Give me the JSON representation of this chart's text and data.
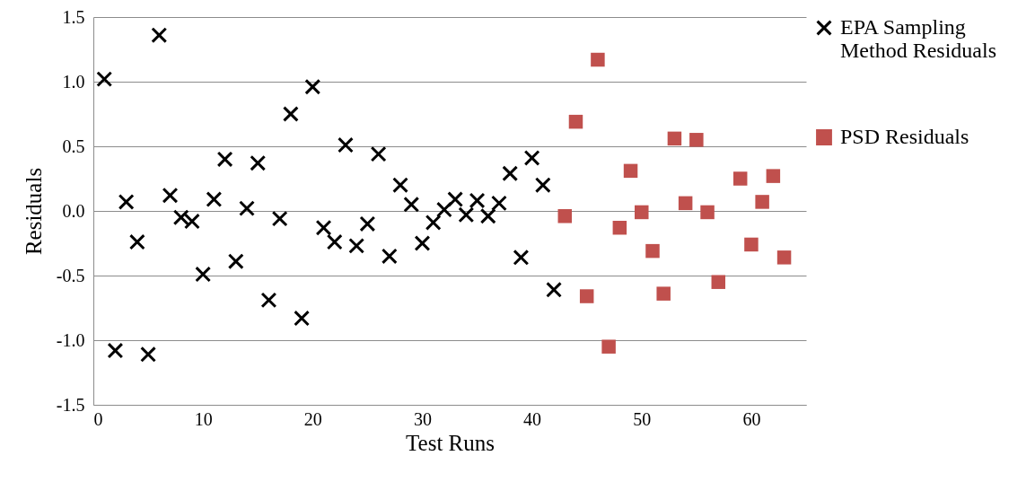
{
  "chart_data": {
    "type": "scatter",
    "xlabel": "Test Runs",
    "ylabel": "Residuals",
    "xlim": [
      0,
      65
    ],
    "xticks": [
      0,
      10,
      20,
      30,
      40,
      50,
      60
    ],
    "ylim": [
      -1.5,
      1.5
    ],
    "yticks": [
      -1.5,
      {
        "value": -1,
        "label": "-1.0"
      },
      {
        "value": -0.5,
        "label": "-0.5"
      },
      {
        "value": 0,
        "label": "0.0"
      },
      {
        "value": 0.5,
        "label": "0.5"
      },
      {
        "value": 1,
        "label": "1.0"
      },
      {
        "value": 1.5,
        "label": "1.5"
      }
    ],
    "grid": "y",
    "legend": "right",
    "series": [
      {
        "name": "EPA Sampling Method Residuals",
        "color": "#000000",
        "marker": "cross",
        "x": [
          1,
          2,
          3,
          4,
          5,
          6,
          7,
          8,
          9,
          10,
          11,
          12,
          13,
          14,
          15,
          16,
          17,
          18,
          19,
          20,
          21,
          22,
          23,
          24,
          25,
          26,
          27,
          28,
          29,
          30,
          31,
          32,
          33,
          34,
          35,
          36,
          37,
          38,
          39,
          40,
          41,
          42
        ],
        "values": [
          1.02,
          -1.08,
          0.07,
          -0.24,
          -1.11,
          1.36,
          0.12,
          -0.05,
          -0.08,
          -0.49,
          0.09,
          0.4,
          -0.39,
          0.02,
          0.37,
          -0.69,
          -0.06,
          0.75,
          -0.83,
          0.96,
          -0.13,
          -0.24,
          0.51,
          -0.27,
          -0.1,
          0.44,
          -0.35,
          0.2,
          0.05,
          -0.25,
          -0.09,
          0.01,
          0.09,
          -0.03,
          0.08,
          -0.04,
          0.06,
          0.29,
          -0.36,
          0.41,
          0.2,
          -0.61
        ]
      },
      {
        "name": "PSD Residuals",
        "color": "#c0504d",
        "marker": "square",
        "x": [
          43,
          44,
          45,
          46,
          47,
          48,
          49,
          50,
          51,
          52,
          53,
          54,
          55,
          56,
          57,
          59,
          60,
          61,
          62,
          63
        ],
        "values": [
          -0.04,
          0.69,
          -0.66,
          1.17,
          -1.05,
          -0.13,
          0.31,
          -0.01,
          -0.31,
          -0.64,
          0.56,
          0.06,
          0.55,
          -0.01,
          -0.55,
          0.25,
          -0.26,
          0.07,
          0.27,
          -0.36
        ]
      }
    ]
  }
}
